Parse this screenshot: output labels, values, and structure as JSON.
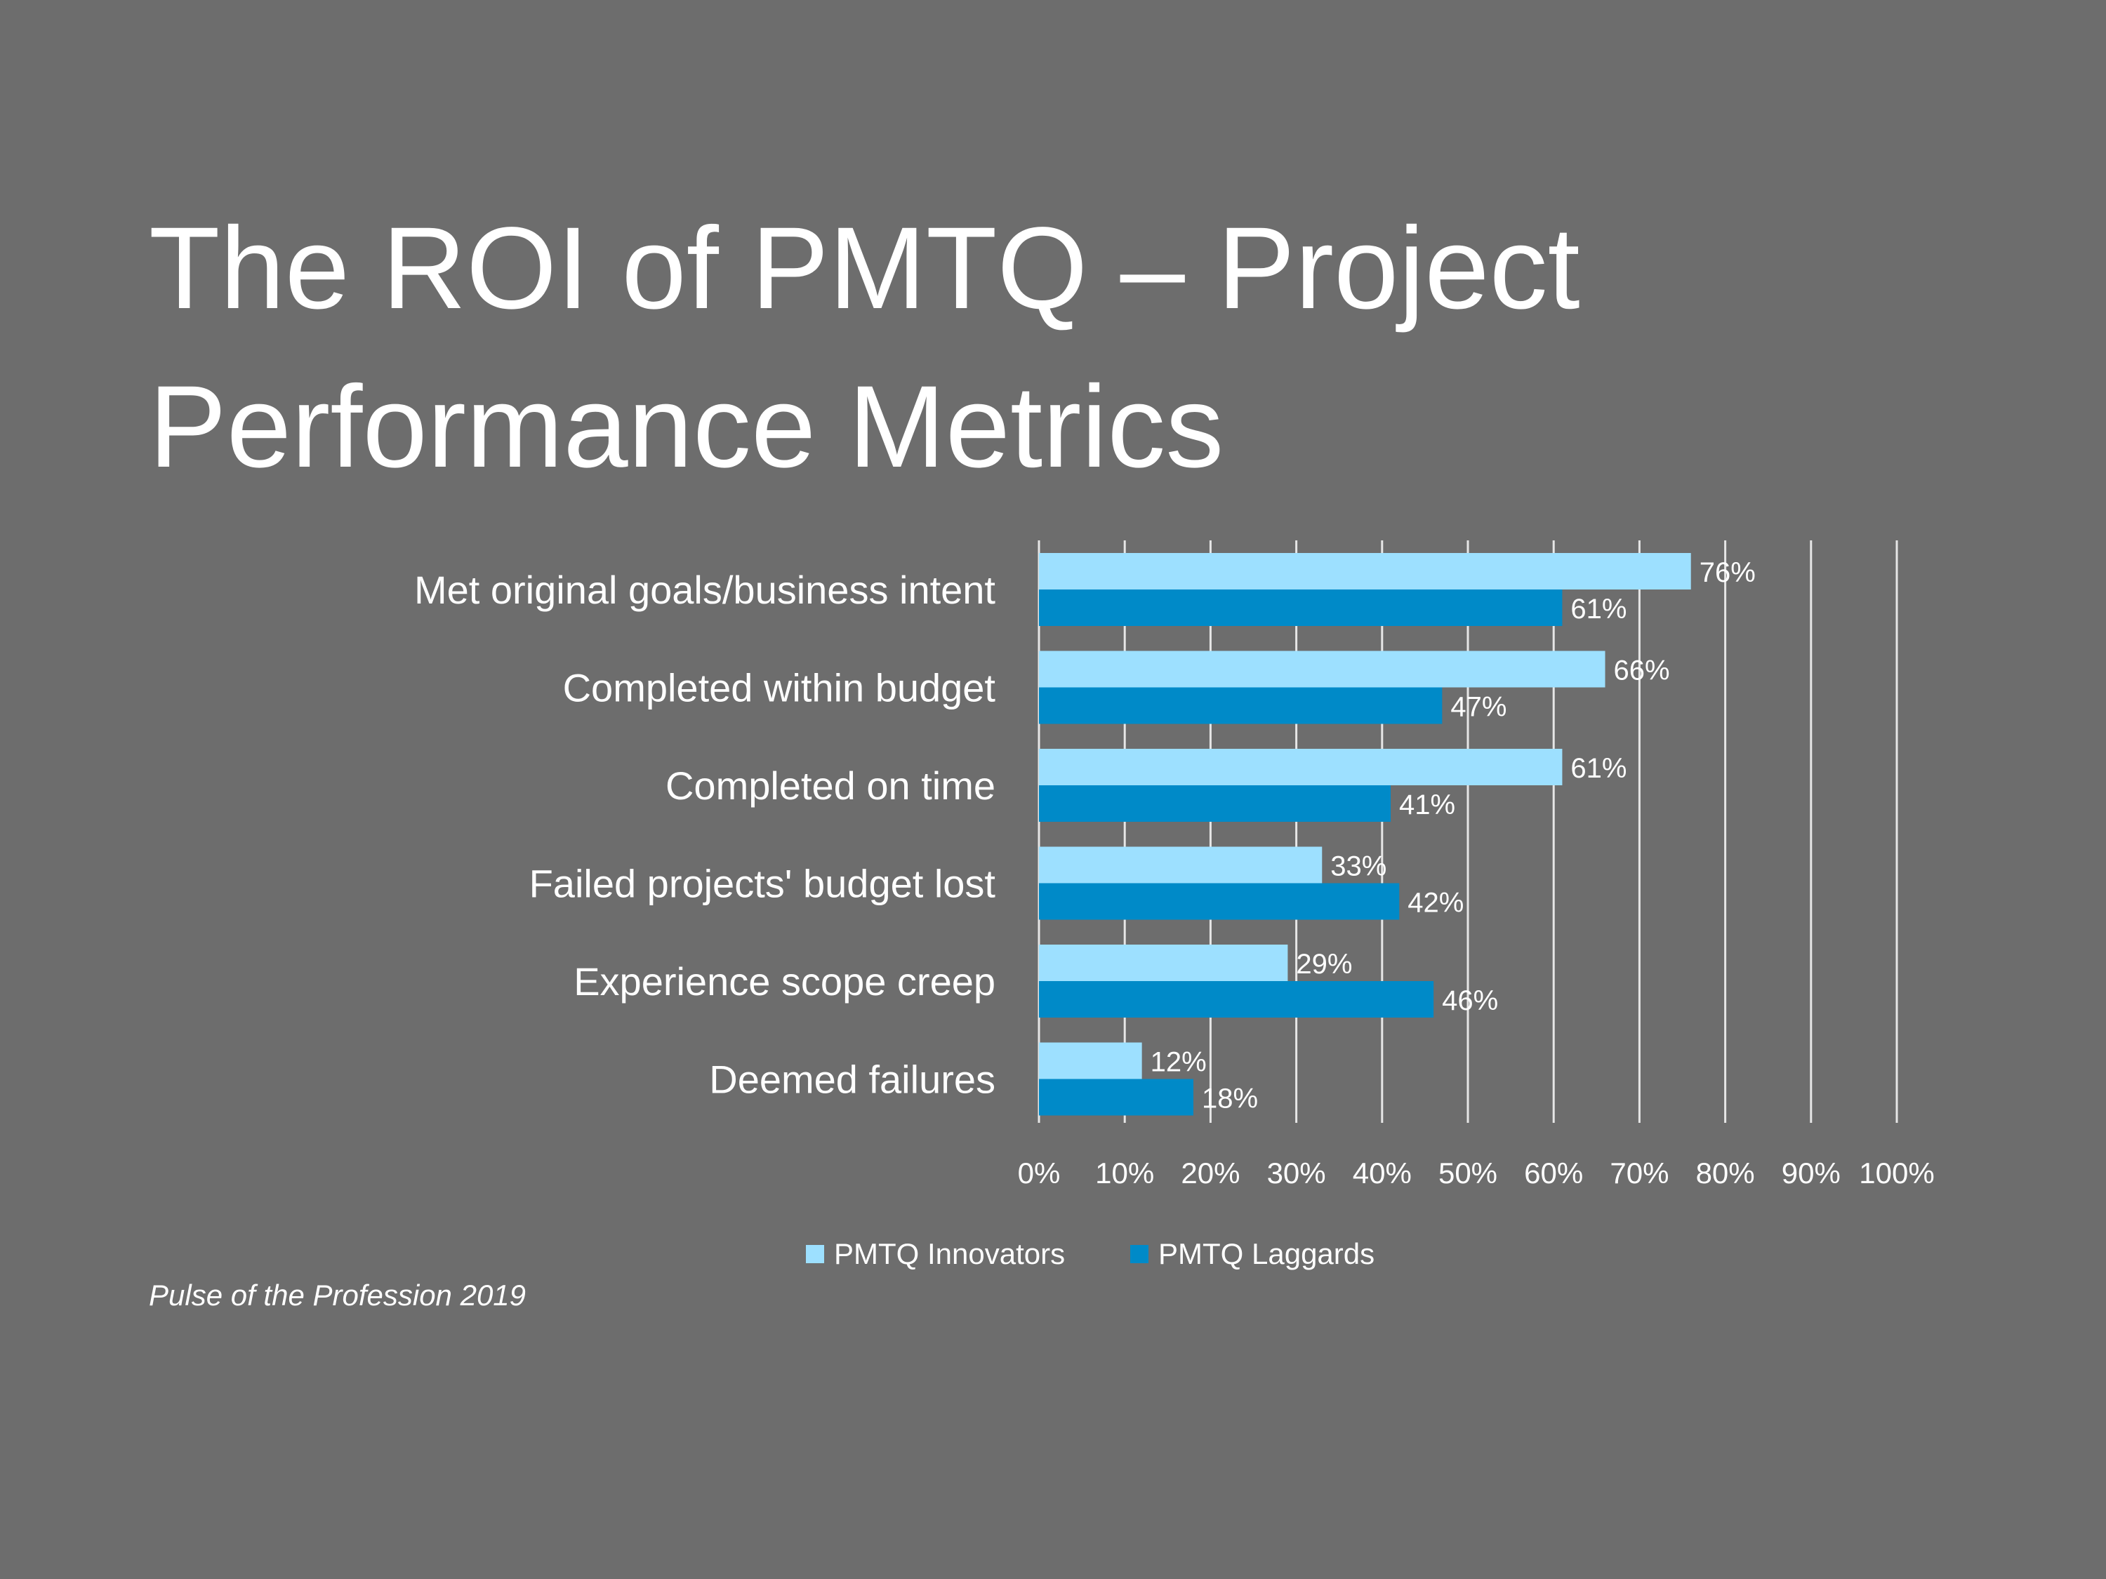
{
  "slide": {
    "title": "The ROI of PMTQ – Project\nPerformance Metrics",
    "source": "Pulse of the Profession 2019"
  },
  "colors": {
    "background": "#6d6d6d",
    "innovators": "#9de0ff",
    "laggards": "#008ac8",
    "text": "#ffffff",
    "grid": "#e6e6e6"
  },
  "chart_data": {
    "type": "bar",
    "orientation": "horizontal",
    "categories": [
      "Met original goals/business intent",
      "Completed within budget",
      "Completed on time",
      "Failed projects' budget lost",
      "Experience scope creep",
      "Deemed failures"
    ],
    "series": [
      {
        "name": "PMTQ Innovators",
        "values": [
          76,
          66,
          61,
          33,
          29,
          12
        ],
        "labels": [
          "76%",
          "66%",
          "61%",
          "33%",
          "29%",
          "12%"
        ]
      },
      {
        "name": "PMTQ Laggards",
        "values": [
          61,
          47,
          41,
          42,
          46,
          18
        ],
        "labels": [
          "61%",
          "47%",
          "41%",
          "42%",
          "46%",
          "18%"
        ]
      }
    ],
    "xlim": [
      0,
      100
    ],
    "xticks": [
      "0%",
      "10%",
      "20%",
      "30%",
      "40%",
      "50%",
      "60%",
      "70%",
      "80%",
      "90%",
      "100%"
    ],
    "grid": "vertical",
    "legend": "bottom"
  }
}
